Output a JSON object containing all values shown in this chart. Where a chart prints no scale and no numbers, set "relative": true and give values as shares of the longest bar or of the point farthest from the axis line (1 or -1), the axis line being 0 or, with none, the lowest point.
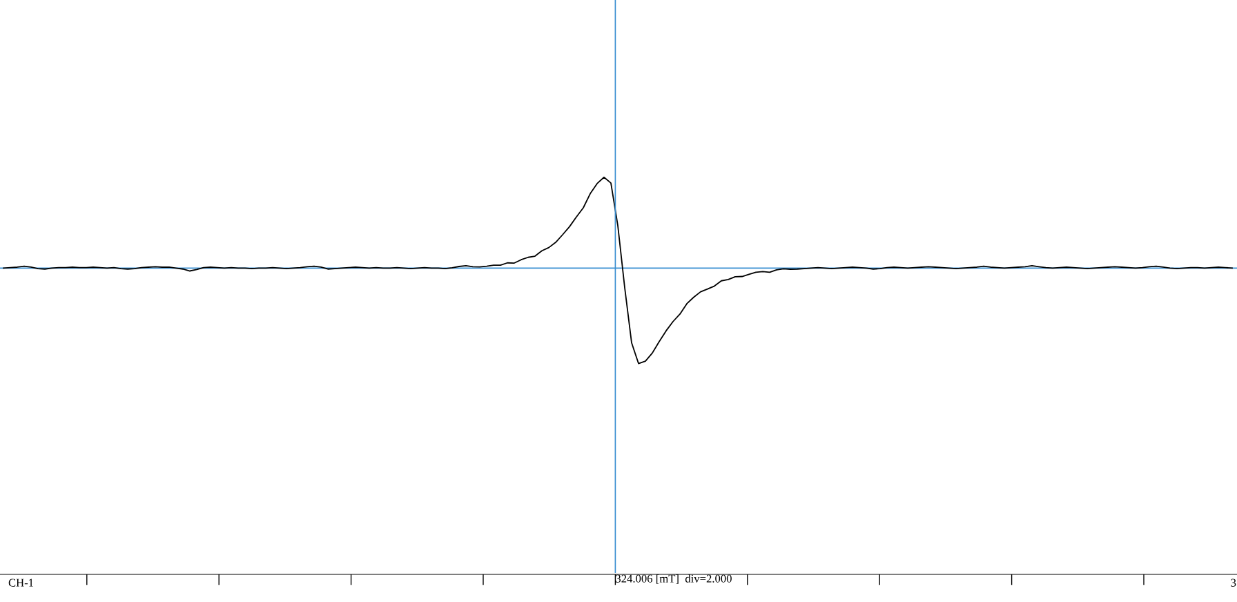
{
  "chart_data": {
    "type": "line",
    "relative": true,
    "categories": [
      null,
      null,
      null,
      null,
      null,
      null,
      null,
      null,
      null,
      null,
      null,
      null,
      null,
      null,
      null,
      null,
      null,
      null,
      null,
      null,
      null,
      null,
      null,
      null,
      null,
      null,
      null,
      null,
      null,
      null,
      null,
      null,
      null,
      null,
      null,
      null,
      null,
      null,
      null,
      null,
      null,
      null,
      null,
      null,
      null,
      null,
      null,
      null,
      null,
      null,
      null,
      null,
      null,
      null,
      null,
      null,
      null,
      null,
      null,
      null,
      null,
      null,
      null,
      null,
      null,
      null,
      null,
      null,
      null,
      null,
      null,
      null,
      null,
      null,
      null,
      null,
      null,
      null,
      null,
      null,
      null,
      null,
      null,
      null,
      null,
      null,
      null,
      null,
      null,
      null,
      null,
      null,
      null,
      null,
      null,
      null,
      null,
      null,
      null,
      null,
      null,
      null,
      null,
      null,
      null,
      null,
      null,
      null,
      null,
      null,
      null,
      null,
      null,
      null,
      null,
      null,
      null,
      null,
      null,
      null,
      null,
      null,
      null,
      null,
      null,
      null,
      null,
      null,
      null,
      null,
      null,
      null,
      null,
      null,
      null,
      null,
      null,
      null,
      null,
      null,
      null,
      null,
      null,
      null,
      null,
      null,
      null,
      null,
      null,
      null,
      null,
      null,
      null,
      null,
      null,
      null,
      null,
      null,
      null,
      null,
      null,
      null,
      null,
      null,
      null,
      null,
      null,
      null,
      null,
      null,
      null,
      null,
      null,
      null,
      null,
      null,
      null,
      null,
      null
    ],
    "series": [
      {
        "color": "#000000",
        "values": [
          0.0,
          0.005,
          0.01,
          0.02,
          0.01,
          -0.005,
          -0.01,
          0.0,
          0.005,
          0.005,
          0.01,
          0.005,
          0.005,
          0.01,
          0.005,
          0.0,
          0.005,
          -0.005,
          -0.01,
          -0.005,
          0.005,
          0.01,
          0.015,
          0.01,
          0.01,
          0.0,
          -0.01,
          -0.03,
          -0.015,
          0.005,
          0.01,
          0.005,
          0.0,
          0.005,
          0.0,
          0.0,
          -0.005,
          0.0,
          0.0,
          0.005,
          0.0,
          -0.005,
          0.0,
          0.005,
          0.015,
          0.02,
          0.01,
          -0.01,
          -0.005,
          0.0,
          0.005,
          0.01,
          0.005,
          0.0,
          0.005,
          0.0,
          0.0,
          0.005,
          0.0,
          -0.005,
          0.0,
          0.005,
          0.0,
          0.0,
          -0.005,
          0.003,
          0.017,
          0.025,
          0.015,
          0.012,
          0.02,
          0.03,
          0.031,
          0.055,
          0.053,
          0.088,
          0.113,
          0.125,
          0.182,
          0.215,
          0.27,
          0.35,
          0.434,
          0.536,
          0.632,
          0.78,
          0.886,
          0.952,
          0.892,
          0.446,
          -0.205,
          -0.783,
          -1.0,
          -0.975,
          -0.89,
          -0.77,
          -0.657,
          -0.56,
          -0.482,
          -0.373,
          -0.305,
          -0.248,
          -0.219,
          -0.188,
          -0.133,
          -0.12,
          -0.09,
          -0.088,
          -0.065,
          -0.043,
          -0.037,
          -0.043,
          -0.018,
          -0.008,
          -0.012,
          -0.01,
          -0.005,
          0.0,
          0.005,
          0.0,
          -0.005,
          0.0,
          0.005,
          0.01,
          0.005,
          0.0,
          -0.01,
          -0.005,
          0.005,
          0.01,
          0.005,
          0.0,
          0.005,
          0.01,
          0.015,
          0.01,
          0.005,
          0.0,
          -0.005,
          0.0,
          0.005,
          0.01,
          0.02,
          0.01,
          0.005,
          0.0,
          0.005,
          0.01,
          0.015,
          0.025,
          0.015,
          0.005,
          0.0,
          0.005,
          0.01,
          0.005,
          0.0,
          -0.005,
          0.0,
          0.005,
          0.01,
          0.015,
          0.01,
          0.005,
          0.0,
          0.005,
          0.015,
          0.02,
          0.01,
          0.0,
          -0.005,
          0.0,
          0.005,
          0.005,
          0.0,
          0.005,
          0.01,
          0.005,
          0.0
        ]
      }
    ],
    "ref_lines": [
      {
        "axis": "y",
        "value": 0,
        "color": "#3a8fd1"
      }
    ],
    "annotations": [
      "CH-1",
      "324.006 [mT]  div=2.000",
      "3"
    ],
    "marker": "none",
    "line_style": "solid"
  }
}
